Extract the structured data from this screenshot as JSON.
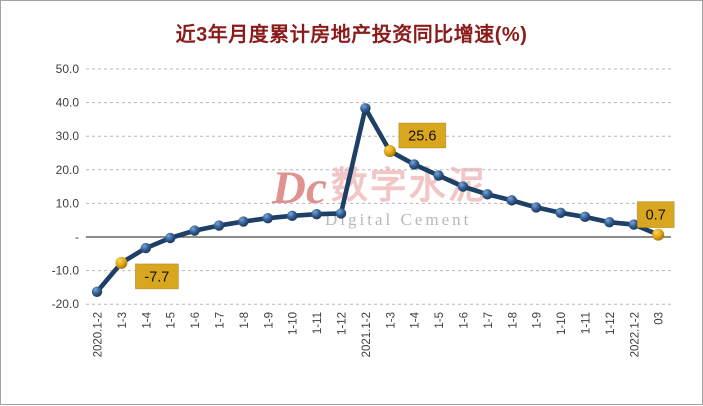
{
  "chart_data": {
    "type": "line",
    "title": "近3年月度累计房地产投资同比增速(%)",
    "categories": [
      "2020.1-2",
      "1-3",
      "1-4",
      "1-5",
      "1-6",
      "1-7",
      "1-8",
      "1-9",
      "1-10",
      "1-11",
      "1-12",
      "2021.1-2",
      "1-3",
      "1-4",
      "1-5",
      "1-6",
      "1-7",
      "1-8",
      "1-9",
      "1-10",
      "1-11",
      "1-12",
      "2022.1-2",
      "03"
    ],
    "series": [
      {
        "name": "累计房地产投资同比增速",
        "values": [
          -16.3,
          -7.7,
          -3.3,
          -0.3,
          1.9,
          3.4,
          4.6,
          5.6,
          6.3,
          6.8,
          7.0,
          38.3,
          25.6,
          21.6,
          18.3,
          15.0,
          12.7,
          10.9,
          8.8,
          7.2,
          6.0,
          4.4,
          3.7,
          0.7
        ]
      }
    ],
    "y_axis": [
      {
        "v": 50,
        "label": "50.0"
      },
      {
        "v": 40,
        "label": "40.0"
      },
      {
        "v": 30,
        "label": "30.0"
      },
      {
        "v": 20,
        "label": "20.0"
      },
      {
        "v": 10,
        "label": "10.0"
      },
      {
        "v": 0,
        "label": "-"
      },
      {
        "v": -10,
        "label": "-10.0"
      },
      {
        "v": -20,
        "label": "-20.0"
      }
    ],
    "ylim": [
      -20,
      50
    ],
    "grid": "horizontal-dashed",
    "legend": "none",
    "x_label_rotation": -90,
    "highlighted_indices": [
      1,
      12,
      23
    ],
    "data_labels": [
      {
        "index": 1,
        "text": "-7.7"
      },
      {
        "index": 12,
        "text": "25.6"
      },
      {
        "index": 23,
        "text": "0.7"
      }
    ],
    "colors": {
      "title": "#8b1b1b",
      "line": "#1e3f66",
      "marker": "#2f5c93",
      "highlight_marker": "#e2a916",
      "label_box_bg": "#d9a61f",
      "label_box_text": "#151005",
      "gridline": "#b8b8b8",
      "zero_line": "#474747",
      "axis_text": "#3f3f3f"
    }
  },
  "watermark": {
    "logo": "Dc",
    "cn": "数字水泥",
    "en": "Digital Cement"
  }
}
